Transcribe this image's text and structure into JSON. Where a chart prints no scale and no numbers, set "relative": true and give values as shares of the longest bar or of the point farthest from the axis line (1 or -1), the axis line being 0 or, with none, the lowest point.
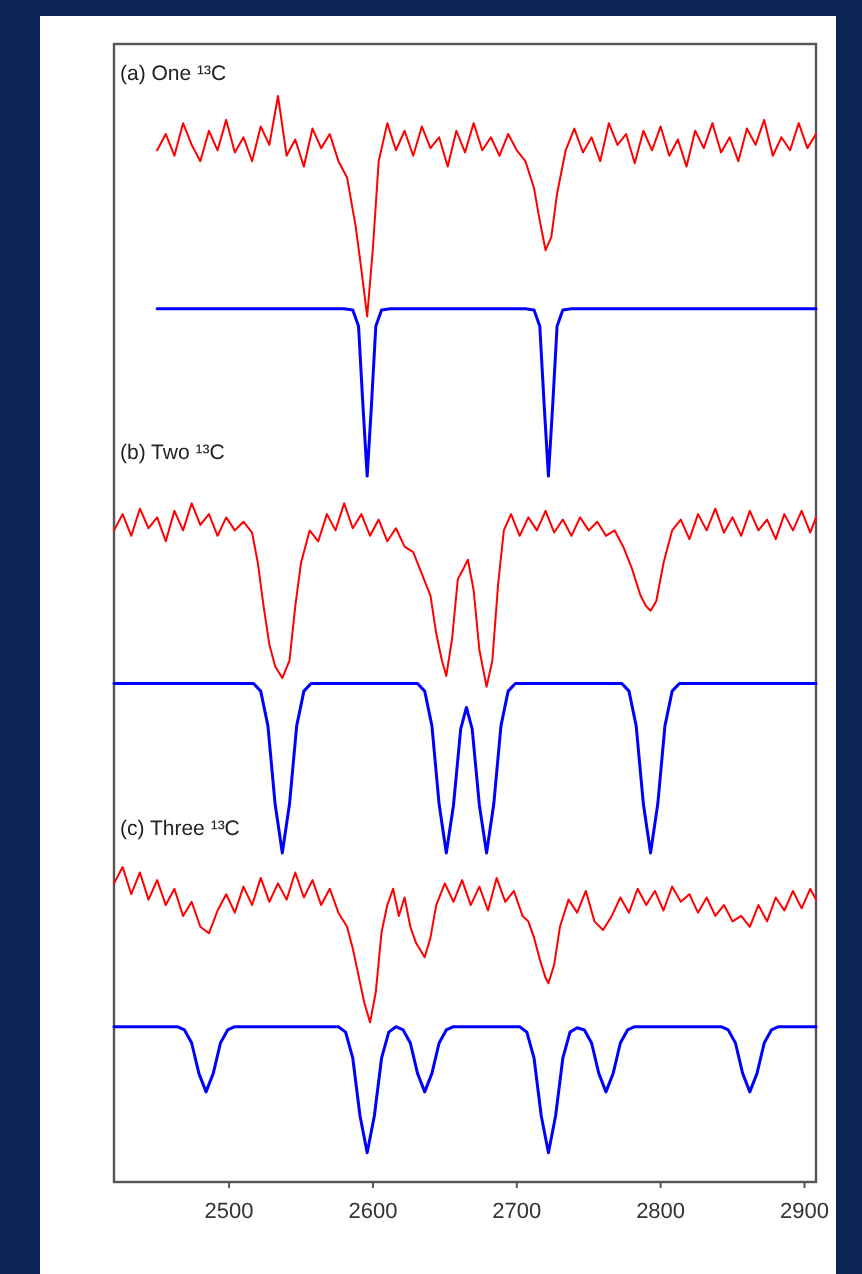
{
  "chart_data": {
    "type": "line",
    "relative": true,
    "tick_labels": "x",
    "xlim": [
      2420,
      2908
    ],
    "xticks": [
      2500,
      2600,
      2700,
      2800,
      2900
    ],
    "annotations": [
      "(a) One ¹³C",
      "(b) Two ¹³C",
      "(c) Three ¹³C"
    ],
    "series": [
      {
        "color": "#ff0000",
        "x": [
          2450,
          2456,
          2462,
          2468,
          2474,
          2480,
          2486,
          2492,
          2498,
          2504,
          2510,
          2516,
          2522,
          2528,
          2534,
          2540,
          2546,
          2552,
          2558,
          2564,
          2570,
          2576,
          2582,
          2588,
          2592,
          2596,
          2600,
          2604,
          2610,
          2616,
          2622,
          2628,
          2634,
          2640,
          2646,
          2652,
          2658,
          2664,
          2670,
          2676,
          2682,
          2688,
          2694,
          2700,
          2706,
          2712,
          2716,
          2720,
          2724,
          2728,
          2734,
          2740,
          2746,
          2752,
          2758,
          2764,
          2770,
          2776,
          2782,
          2788,
          2794,
          2800,
          2806,
          2812,
          2818,
          2824,
          2830,
          2836,
          2842,
          2848,
          2854,
          2860,
          2866,
          2872,
          2878,
          2884,
          2890,
          2896,
          2902,
          2908
        ],
        "values": [
          0.95,
          0.965,
          0.945,
          0.975,
          0.955,
          0.94,
          0.968,
          0.95,
          0.978,
          0.948,
          0.962,
          0.94,
          0.972,
          0.955,
          1,
          0.945,
          0.96,
          0.935,
          0.97,
          0.952,
          0.965,
          0.94,
          0.925,
          0.88,
          0.84,
          0.797,
          0.86,
          0.94,
          0.975,
          0.95,
          0.968,
          0.945,
          0.972,
          0.952,
          0.962,
          0.935,
          0.968,
          0.948,
          0.975,
          0.95,
          0.962,
          0.945,
          0.965,
          0.95,
          0.94,
          0.915,
          0.885,
          0.858,
          0.87,
          0.91,
          0.95,
          0.97,
          0.948,
          0.962,
          0.94,
          0.975,
          0.955,
          0.965,
          0.938,
          0.968,
          0.95,
          0.972,
          0.945,
          0.96,
          0.935,
          0.968,
          0.952,
          0.975,
          0.948,
          0.962,
          0.94,
          0.97,
          0.955,
          0.978,
          0.945,
          0.962,
          0.95,
          0.975,
          0.952,
          0.965
        ]
      },
      {
        "color": "#0000ff",
        "x": [
          2450,
          2580,
          2586,
          2590,
          2593,
          2596,
          2599,
          2602,
          2606,
          2612,
          2706,
          2712,
          2716,
          2719,
          2722,
          2725,
          2728,
          2732,
          2738,
          2908
        ],
        "values": [
          0.804,
          0.804,
          0.803,
          0.788,
          0.716,
          0.65,
          0.716,
          0.788,
          0.803,
          0.804,
          0.804,
          0.803,
          0.788,
          0.716,
          0.65,
          0.716,
          0.788,
          0.803,
          0.804,
          0.804
        ]
      },
      {
        "color": "#ff0000",
        "x": [
          2420,
          2426,
          2432,
          2438,
          2444,
          2450,
          2456,
          2462,
          2468,
          2474,
          2480,
          2486,
          2492,
          2498,
          2504,
          2510,
          2516,
          2520,
          2524,
          2528,
          2532,
          2537,
          2542,
          2546,
          2550,
          2556,
          2562,
          2568,
          2574,
          2580,
          2586,
          2592,
          2598,
          2604,
          2610,
          2616,
          2622,
          2628,
          2634,
          2640,
          2644,
          2648,
          2651,
          2655,
          2659,
          2663,
          2666,
          2670,
          2674,
          2679,
          2683,
          2687,
          2691,
          2696,
          2702,
          2708,
          2714,
          2720,
          2726,
          2732,
          2738,
          2744,
          2750,
          2756,
          2762,
          2768,
          2774,
          2780,
          2786,
          2790,
          2793,
          2797,
          2802,
          2808,
          2814,
          2820,
          2826,
          2832,
          2838,
          2844,
          2850,
          2856,
          2862,
          2868,
          2874,
          2880,
          2886,
          2892,
          2898,
          2904,
          2908
        ],
        "values": [
          0.6,
          0.615,
          0.595,
          0.62,
          0.602,
          0.612,
          0.59,
          0.618,
          0.6,
          0.625,
          0.605,
          0.615,
          0.595,
          0.612,
          0.6,
          0.608,
          0.598,
          0.57,
          0.53,
          0.495,
          0.475,
          0.464,
          0.48,
          0.53,
          0.57,
          0.6,
          0.59,
          0.615,
          0.6,
          0.625,
          0.602,
          0.615,
          0.595,
          0.61,
          0.59,
          0.602,
          0.585,
          0.58,
          0.56,
          0.54,
          0.505,
          0.48,
          0.466,
          0.5,
          0.555,
          0.565,
          0.573,
          0.545,
          0.49,
          0.456,
          0.48,
          0.55,
          0.6,
          0.615,
          0.595,
          0.612,
          0.6,
          0.618,
          0.598,
          0.61,
          0.595,
          0.612,
          0.6,
          0.608,
          0.595,
          0.6,
          0.585,
          0.565,
          0.54,
          0.53,
          0.526,
          0.535,
          0.57,
          0.6,
          0.61,
          0.592,
          0.615,
          0.6,
          0.62,
          0.598,
          0.612,
          0.595,
          0.618,
          0.6,
          0.61,
          0.592,
          0.615,
          0.6,
          0.618,
          0.598,
          0.612
        ]
      },
      {
        "color": "#0000ff",
        "x": [
          2420,
          2517,
          2522,
          2527,
          2532,
          2537,
          2542,
          2547,
          2552,
          2557,
          2631,
          2636,
          2641,
          2646,
          2651,
          2656,
          2661,
          2665,
          2669,
          2674,
          2679,
          2684,
          2689,
          2694,
          2699,
          2773,
          2778,
          2783,
          2788,
          2793,
          2798,
          2803,
          2808,
          2813,
          2908
        ],
        "values": [
          0.459,
          0.459,
          0.452,
          0.42,
          0.348,
          0.303,
          0.348,
          0.42,
          0.452,
          0.459,
          0.459,
          0.452,
          0.42,
          0.348,
          0.303,
          0.347,
          0.417,
          0.437,
          0.417,
          0.347,
          0.303,
          0.348,
          0.42,
          0.452,
          0.459,
          0.459,
          0.452,
          0.42,
          0.348,
          0.303,
          0.348,
          0.42,
          0.452,
          0.459,
          0.459
        ]
      },
      {
        "color": "#ff0000",
        "x": [
          2420,
          2426,
          2432,
          2438,
          2444,
          2450,
          2456,
          2462,
          2468,
          2474,
          2480,
          2486,
          2492,
          2498,
          2504,
          2510,
          2516,
          2522,
          2528,
          2534,
          2540,
          2546,
          2552,
          2558,
          2564,
          2570,
          2576,
          2582,
          2586,
          2590,
          2594,
          2598,
          2602,
          2606,
          2610,
          2614,
          2618,
          2622,
          2626,
          2630,
          2636,
          2640,
          2644,
          2650,
          2656,
          2662,
          2668,
          2674,
          2680,
          2686,
          2692,
          2698,
          2704,
          2708,
          2712,
          2716,
          2720,
          2722,
          2726,
          2730,
          2736,
          2742,
          2748,
          2754,
          2760,
          2766,
          2772,
          2778,
          2784,
          2790,
          2796,
          2802,
          2808,
          2814,
          2820,
          2826,
          2832,
          2838,
          2844,
          2850,
          2856,
          2862,
          2868,
          2874,
          2880,
          2886,
          2892,
          2898,
          2904,
          2908
        ],
        "values": [
          0.275,
          0.29,
          0.265,
          0.285,
          0.26,
          0.278,
          0.255,
          0.27,
          0.245,
          0.258,
          0.235,
          0.229,
          0.25,
          0.265,
          0.248,
          0.272,
          0.255,
          0.28,
          0.258,
          0.275,
          0.26,
          0.285,
          0.262,
          0.278,
          0.255,
          0.27,
          0.248,
          0.235,
          0.215,
          0.19,
          0.165,
          0.147,
          0.175,
          0.23,
          0.255,
          0.27,
          0.245,
          0.262,
          0.235,
          0.22,
          0.207,
          0.225,
          0.255,
          0.275,
          0.258,
          0.278,
          0.255,
          0.272,
          0.25,
          0.28,
          0.258,
          0.268,
          0.245,
          0.24,
          0.225,
          0.205,
          0.188,
          0.183,
          0.2,
          0.235,
          0.26,
          0.248,
          0.268,
          0.24,
          0.232,
          0.245,
          0.262,
          0.248,
          0.27,
          0.255,
          0.268,
          0.25,
          0.272,
          0.258,
          0.265,
          0.248,
          0.262,
          0.245,
          0.255,
          0.24,
          0.245,
          0.235,
          0.255,
          0.24,
          0.262,
          0.25,
          0.268,
          0.252,
          0.27,
          0.26
        ]
      },
      {
        "color": "#0000ff",
        "x": [
          2420,
          2464,
          2469,
          2474,
          2479,
          2484,
          2489,
          2494,
          2499,
          2504,
          2576,
          2581,
          2586,
          2591,
          2596,
          2601,
          2606,
          2611,
          2616,
          2621,
          2626,
          2631,
          2636,
          2641,
          2646,
          2651,
          2656,
          2702,
          2707,
          2712,
          2717,
          2722,
          2727,
          2732,
          2737,
          2742,
          2747,
          2752,
          2757,
          2762,
          2767,
          2772,
          2777,
          2782,
          2842,
          2847,
          2852,
          2857,
          2862,
          2867,
          2872,
          2877,
          2882,
          2908
        ],
        "values": [
          0.143,
          0.143,
          0.14,
          0.128,
          0.1,
          0.083,
          0.1,
          0.128,
          0.14,
          0.143,
          0.143,
          0.138,
          0.114,
          0.061,
          0.027,
          0.061,
          0.114,
          0.138,
          0.143,
          0.14,
          0.128,
          0.1,
          0.083,
          0.1,
          0.128,
          0.14,
          0.143,
          0.143,
          0.138,
          0.114,
          0.061,
          0.027,
          0.061,
          0.114,
          0.138,
          0.142,
          0.14,
          0.128,
          0.1,
          0.083,
          0.1,
          0.128,
          0.14,
          0.143,
          0.143,
          0.14,
          0.128,
          0.1,
          0.083,
          0.1,
          0.128,
          0.14,
          0.143,
          0.143
        ]
      }
    ]
  }
}
